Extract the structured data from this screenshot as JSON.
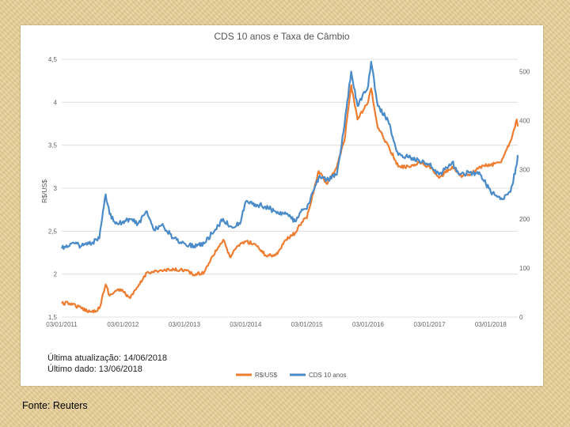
{
  "colors": {
    "brl_usd": "#ed7d31",
    "cds": "#4b8bc8",
    "grid": "#d9d9d9",
    "background": "#e7cf97"
  },
  "notes": {
    "last_update": "Última atualização: 14/06/2018",
    "last_data": "Último dado: 13/06/2018"
  },
  "source": "Fonte: Reuters",
  "chart_data": {
    "type": "line",
    "title": "CDS 10 anos e Taxa de Câmbio",
    "ylabel": "R$/US$",
    "ylabel_right": "",
    "ylim": [
      1.5,
      4.5
    ],
    "ylim_right": [
      0,
      525
    ],
    "yticks": [
      "1,5",
      "2",
      "2,5",
      "3",
      "3,5",
      "4",
      "4,5"
    ],
    "yticks_right": [
      "0",
      "100",
      "200",
      "300",
      "400",
      "500"
    ],
    "xlim": [
      "2011-01-03",
      "2018-06-13"
    ],
    "xticks": [
      "03/01/2011",
      "03/01/2012",
      "03/01/2013",
      "03/01/2014",
      "03/01/2015",
      "03/01/2016",
      "03/01/2017",
      "03/01/2018"
    ],
    "grid": true,
    "legend_position": "bottom",
    "series": [
      {
        "name": "R$/US$",
        "axis": "left",
        "color": "#ed7d31",
        "x": [
          "2011-01-03",
          "2011-03-01",
          "2011-05-01",
          "2011-07-01",
          "2011-08-15",
          "2011-09-22",
          "2011-10-15",
          "2011-12-01",
          "2012-01-03",
          "2012-02-15",
          "2012-04-01",
          "2012-05-25",
          "2012-07-01",
          "2012-09-01",
          "2012-11-01",
          "2013-01-03",
          "2013-03-01",
          "2013-05-01",
          "2013-06-15",
          "2013-08-22",
          "2013-10-01",
          "2013-12-01",
          "2014-01-03",
          "2014-03-01",
          "2014-05-01",
          "2014-07-01",
          "2014-09-01",
          "2014-10-25",
          "2014-12-15",
          "2015-01-03",
          "2015-03-15",
          "2015-05-01",
          "2015-07-01",
          "2015-08-15",
          "2015-09-24",
          "2015-11-01",
          "2016-01-03",
          "2016-01-21",
          "2016-03-01",
          "2016-05-01",
          "2016-07-01",
          "2016-09-01",
          "2016-11-01",
          "2017-01-03",
          "2017-03-01",
          "2017-05-18",
          "2017-07-01",
          "2017-09-01",
          "2017-11-01",
          "2018-01-03",
          "2018-03-01",
          "2018-05-01",
          "2018-06-07",
          "2018-06-13"
        ],
        "values": [
          1.66,
          1.66,
          1.6,
          1.56,
          1.6,
          1.88,
          1.75,
          1.82,
          1.8,
          1.72,
          1.85,
          2.02,
          2.03,
          2.04,
          2.05,
          2.05,
          1.99,
          2.02,
          2.2,
          2.4,
          2.2,
          2.35,
          2.38,
          2.35,
          2.22,
          2.22,
          2.4,
          2.48,
          2.64,
          2.65,
          3.2,
          3.05,
          3.25,
          3.55,
          4.2,
          3.8,
          4.0,
          4.16,
          3.7,
          3.5,
          3.25,
          3.25,
          3.3,
          3.25,
          3.12,
          3.25,
          3.15,
          3.15,
          3.25,
          3.27,
          3.3,
          3.55,
          3.8,
          3.72
        ]
      },
      {
        "name": "CDS 10 anos",
        "axis": "right",
        "color": "#4b8bc8",
        "x": [
          "2011-01-03",
          "2011-03-01",
          "2011-05-01",
          "2011-07-01",
          "2011-08-15",
          "2011-09-22",
          "2011-10-15",
          "2011-12-01",
          "2012-01-03",
          "2012-02-15",
          "2012-04-01",
          "2012-05-25",
          "2012-07-01",
          "2012-09-01",
          "2012-11-01",
          "2013-01-03",
          "2013-03-01",
          "2013-05-01",
          "2013-06-15",
          "2013-08-22",
          "2013-10-01",
          "2013-12-01",
          "2014-01-03",
          "2014-03-01",
          "2014-05-01",
          "2014-07-01",
          "2014-09-01",
          "2014-10-25",
          "2014-12-15",
          "2015-01-03",
          "2015-03-15",
          "2015-05-01",
          "2015-07-01",
          "2015-08-15",
          "2015-09-24",
          "2015-11-01",
          "2016-01-03",
          "2016-01-21",
          "2016-03-01",
          "2016-05-01",
          "2016-07-01",
          "2016-09-01",
          "2016-11-01",
          "2017-01-03",
          "2017-03-01",
          "2017-05-18",
          "2017-07-01",
          "2017-09-01",
          "2017-11-01",
          "2018-01-03",
          "2018-03-01",
          "2018-05-01",
          "2018-06-07",
          "2018-06-13"
        ],
        "values": [
          140,
          150,
          145,
          150,
          160,
          250,
          210,
          190,
          195,
          200,
          190,
          215,
          180,
          185,
          160,
          150,
          145,
          150,
          170,
          200,
          185,
          190,
          235,
          230,
          225,
          215,
          210,
          195,
          220,
          220,
          285,
          280,
          290,
          390,
          500,
          430,
          470,
          520,
          430,
          400,
          330,
          325,
          320,
          310,
          290,
          315,
          290,
          295,
          290,
          255,
          240,
          255,
          310,
          330
        ]
      }
    ]
  }
}
